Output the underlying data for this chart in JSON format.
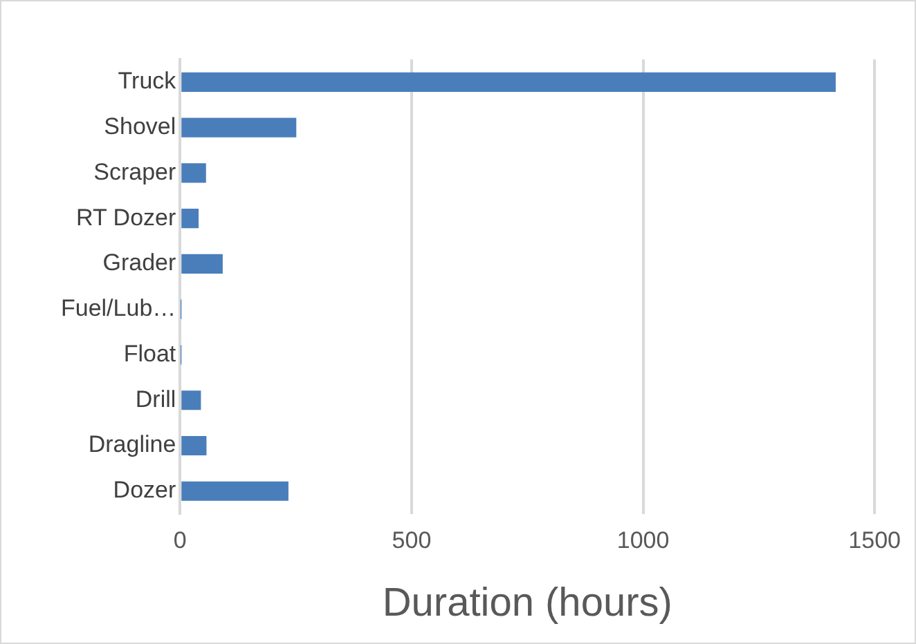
{
  "chart_data": {
    "type": "bar",
    "orientation": "horizontal",
    "xlabel": "Duration (hours)",
    "categories": [
      "Truck",
      "Shovel",
      "Scraper",
      "RT Dozer",
      "Grader",
      "Fuel/Lub…",
      "Float",
      "Drill",
      "Dragline",
      "Dozer"
    ],
    "values": [
      1416,
      251,
      56,
      40,
      92,
      1,
      1,
      45,
      57,
      234
    ],
    "color": "#4a7ebb",
    "xlim": [
      0,
      1500
    ],
    "xticks": [
      0,
      500,
      1000,
      1500
    ],
    "grid": "x",
    "legend": false
  }
}
